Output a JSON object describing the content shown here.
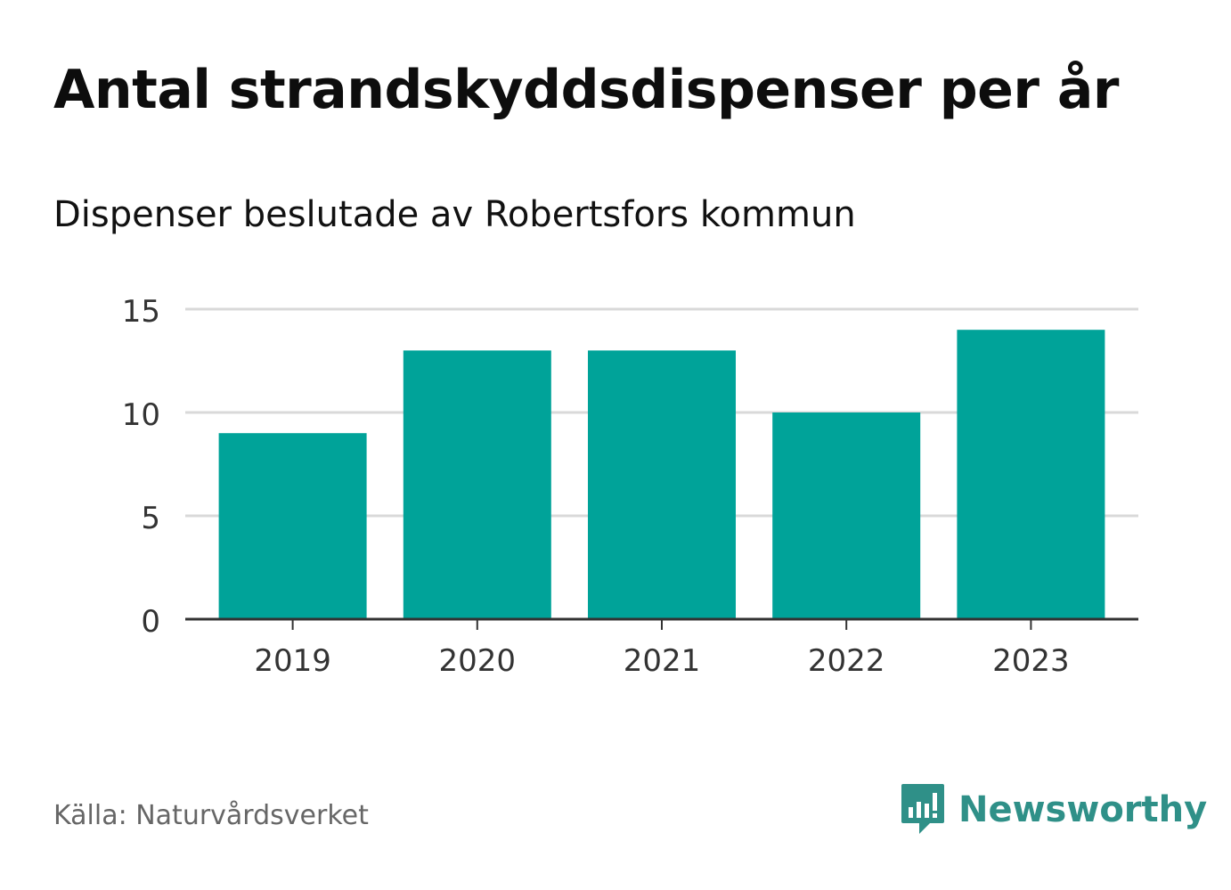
{
  "header": {
    "title": "Antal strandskyddsdispenser per år",
    "subtitle": "Dispenser beslutade av Robertsfors kommun"
  },
  "footer": {
    "source": "Källa: Naturvårdsverket",
    "brand": "Newsworthy"
  },
  "colors": {
    "bar": "#00a399",
    "brand": "#2f9088",
    "grid": "#d9d9d9",
    "axis": "#333333"
  },
  "chart_data": {
    "type": "bar",
    "title": "Antal strandskyddsdispenser per år",
    "subtitle": "Dispenser beslutade av Robertsfors kommun",
    "categories": [
      "2019",
      "2020",
      "2021",
      "2022",
      "2023"
    ],
    "values": [
      9,
      13,
      13,
      10,
      14
    ],
    "xlabel": "",
    "ylabel": "",
    "ylim": [
      0,
      15
    ],
    "yticks": [
      0,
      5,
      10,
      15
    ],
    "grid": true
  }
}
